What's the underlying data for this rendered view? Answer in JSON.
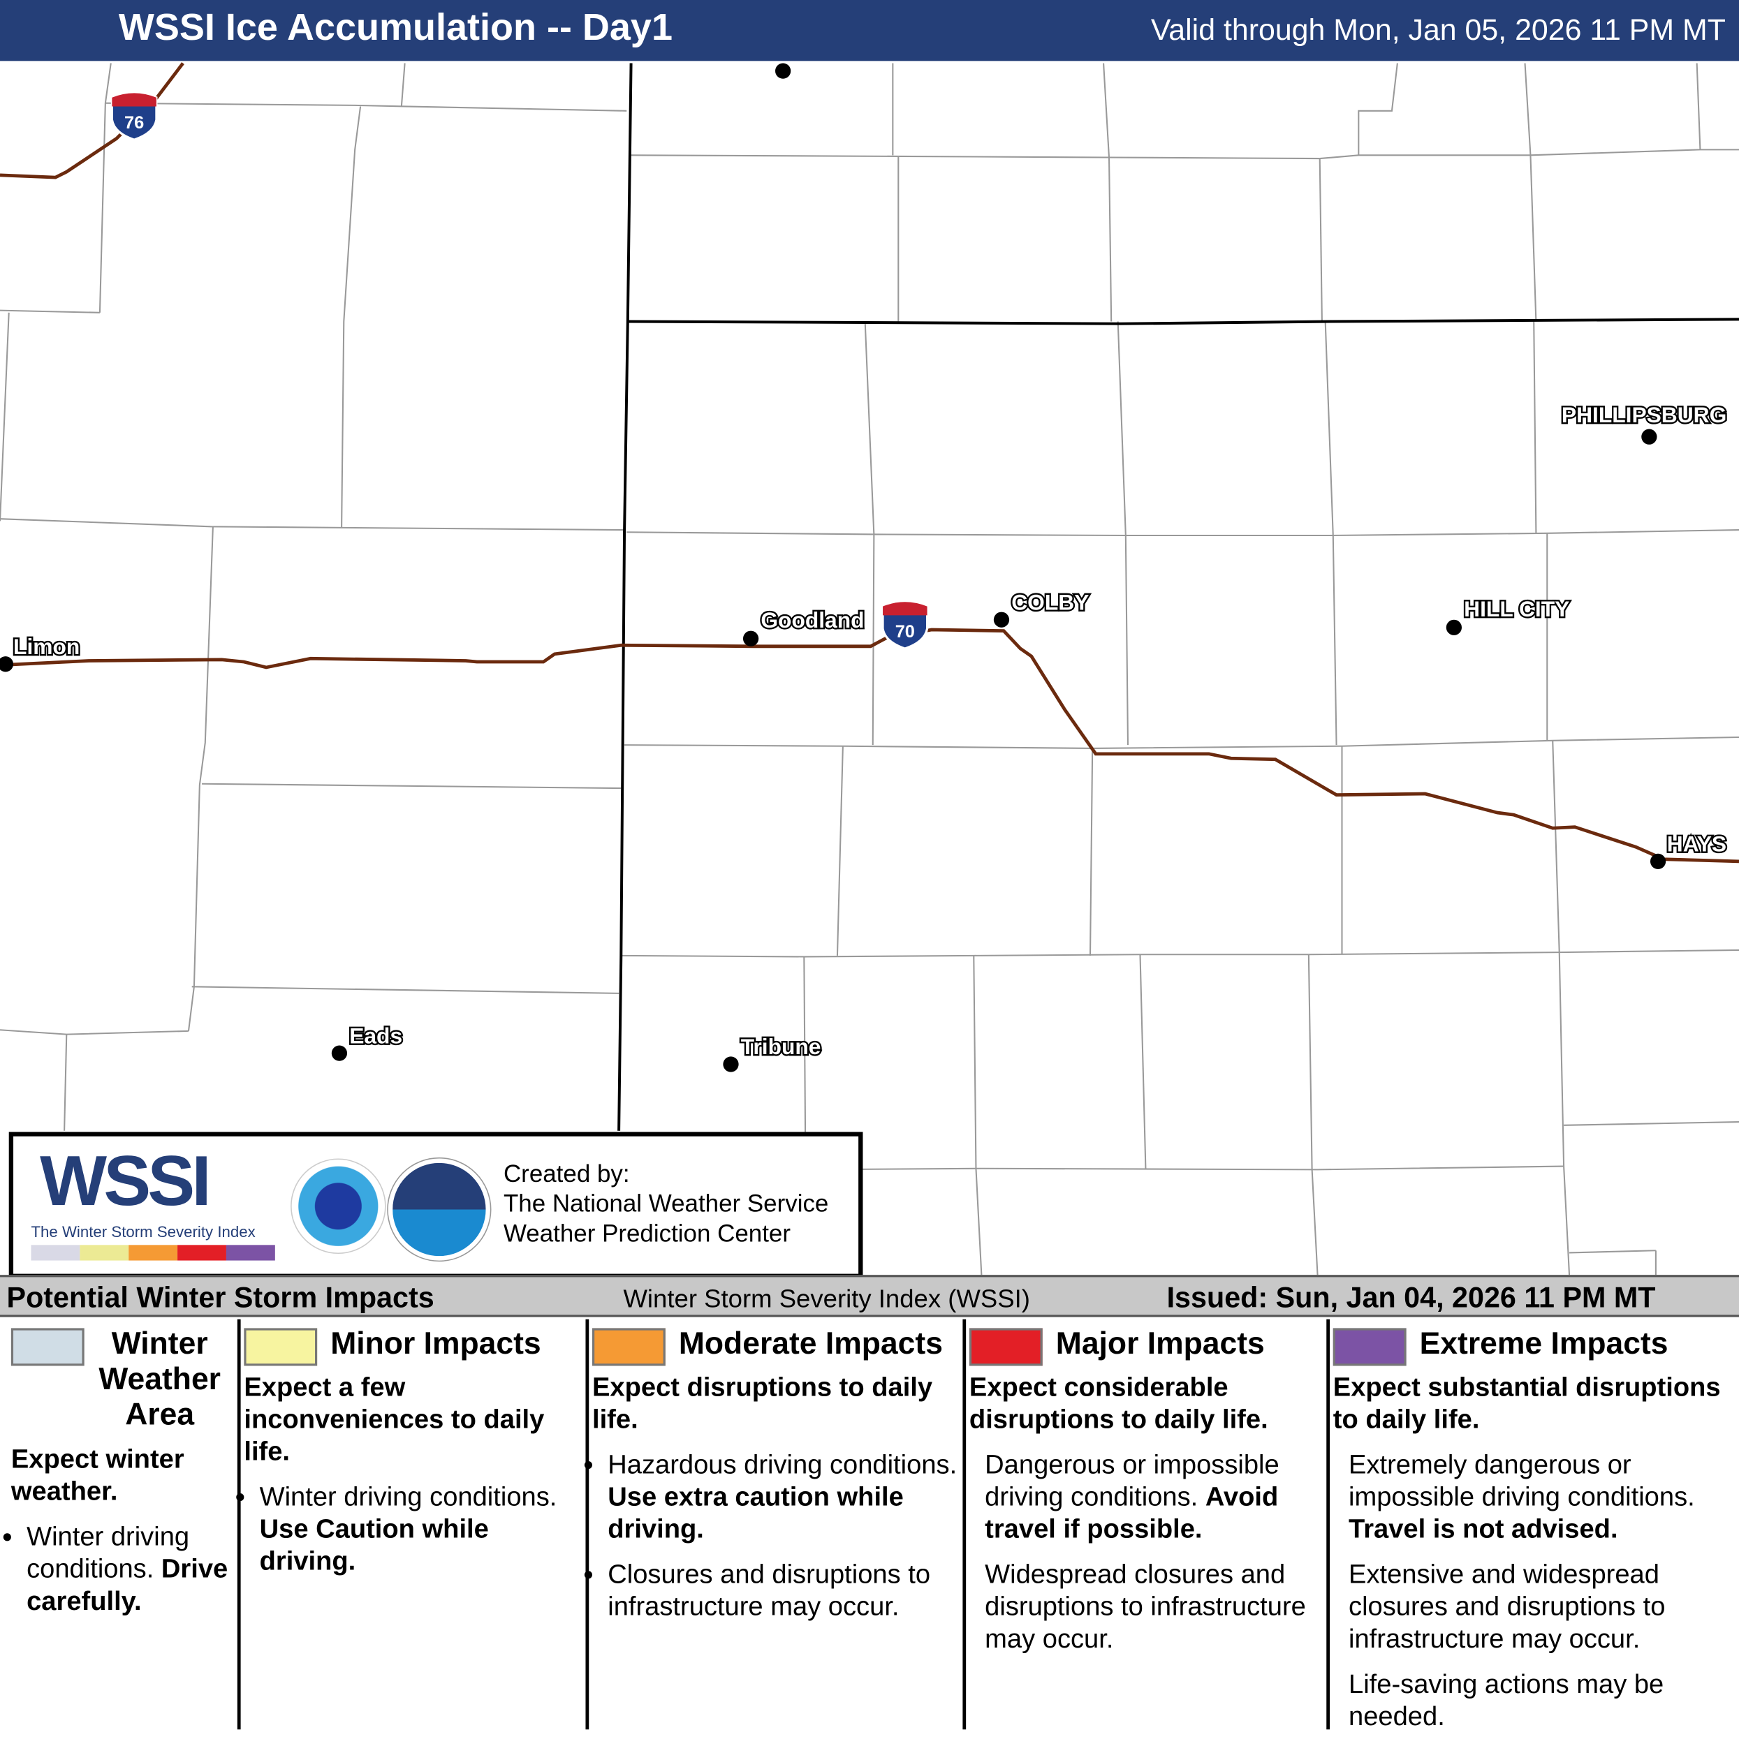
{
  "header": {
    "title": "WSSI Ice Accumulation -- Day1",
    "valid": "Valid through Mon, Jan 05, 2026 11 PM MT"
  },
  "map": {
    "interstates": [
      {
        "number": "76"
      },
      {
        "number": "70"
      }
    ],
    "cities": [
      {
        "name": "Limon"
      },
      {
        "name": "Goodland"
      },
      {
        "name": "COLBY"
      },
      {
        "name": "HILL CITY"
      },
      {
        "name": "PHILLIPSBURG"
      },
      {
        "name": "HAYS"
      },
      {
        "name": "Eads"
      },
      {
        "name": "Tribune"
      }
    ],
    "colors": {
      "interstate": "#6b2a0e",
      "state_line": "#000000",
      "county_line": "#999999"
    }
  },
  "logo": {
    "wssi": "WSSI",
    "tagline": "The Winter Storm Severity Index",
    "tm": "TM",
    "nws": "NATIONAL WEATHER SERVICE",
    "noaa": "NOAA",
    "credit": [
      "Created by:",
      "The National Weather Service",
      "Weather Prediction Center"
    ]
  },
  "legend": {
    "title": "Potential Winter Storm Impacts",
    "center": "Winter Storm Severity Index (WSSI)",
    "issued": "Issued: Sun, Jan 04, 2026 11 PM MT",
    "categories": [
      {
        "name": "Winter Weather Area",
        "color": "#d0dde6",
        "lead": "Expect winter weather.",
        "items": [
          [
            "Winter driving conditions. ",
            "Drive carefully."
          ]
        ]
      },
      {
        "name": "Minor Impacts",
        "color": "#f7f4a0",
        "lead": "Expect a few inconveniences to daily life.",
        "items": [
          [
            "Winter driving conditions. ",
            "Use Caution while driving."
          ]
        ]
      },
      {
        "name": "Moderate Impacts",
        "color": "#f59a34",
        "lead": "Expect disruptions to daily life.",
        "items": [
          [
            "Hazardous driving conditions. ",
            "Use extra caution while driving."
          ],
          [
            "Closures and disruptions to infrastructure may occur.",
            ""
          ]
        ]
      },
      {
        "name": "Major Impacts",
        "color": "#e31f26",
        "lead": "Expect considerable disruptions to daily life.",
        "items": [
          [
            "Dangerous or impossible driving conditions. ",
            "Avoid travel if possible."
          ],
          [
            "Widespread closures and disruptions to infrastructure may occur.",
            ""
          ]
        ]
      },
      {
        "name": "Extreme Impacts",
        "color": "#7c53a5",
        "lead": "Expect substantial disruptions to daily life.",
        "items": [
          [
            "Extremely dangerous or impossible driving conditions. ",
            "Travel is not advised."
          ],
          [
            "Extensive and widespread closures and disruptions to infrastructure may occur.",
            ""
          ],
          [
            "Life-saving actions may be needed.",
            ""
          ]
        ]
      }
    ]
  }
}
